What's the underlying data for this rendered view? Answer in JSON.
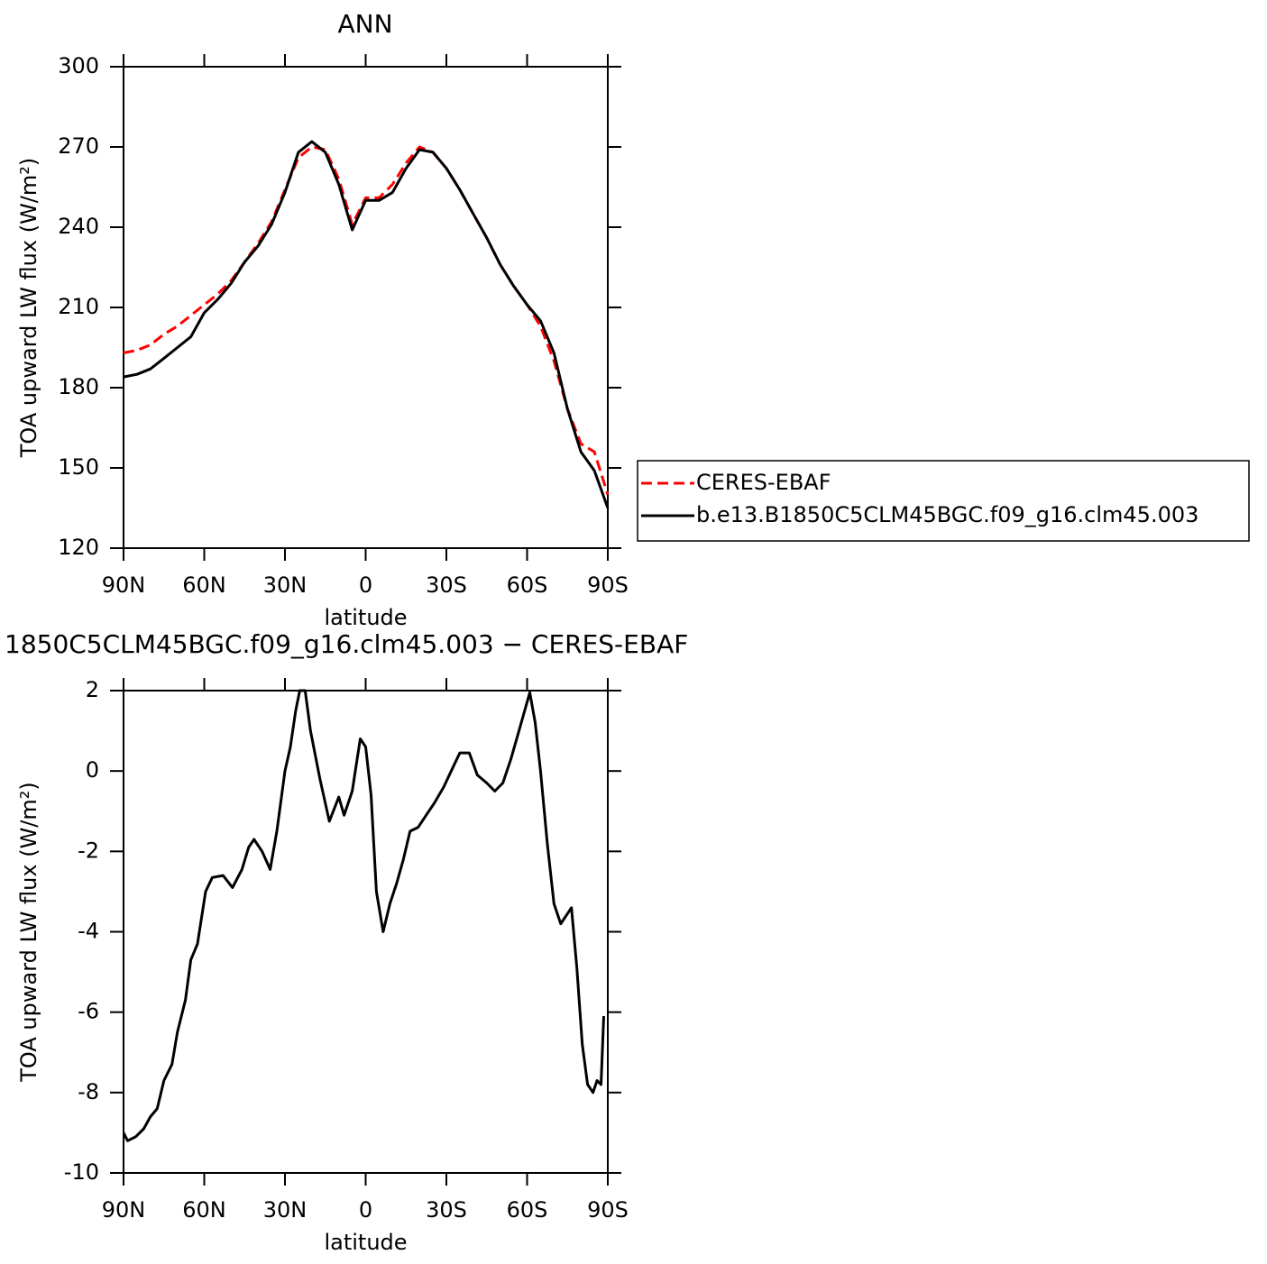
{
  "chart_data": [
    {
      "type": "line",
      "title": "ANN",
      "xlabel": "latitude",
      "ylabel": "TOA upward LW flux (W/m²)",
      "x": [
        90,
        85,
        80,
        75,
        70,
        65,
        60,
        55,
        50,
        45,
        40,
        35,
        30,
        25,
        20,
        15,
        10,
        5,
        0,
        -5,
        -10,
        -15,
        -20,
        -25,
        -30,
        -35,
        -40,
        -45,
        -50,
        -55,
        -60,
        -65,
        -70,
        -75,
        -80,
        -85,
        -90
      ],
      "series": [
        {
          "name": "CERES-EBAF",
          "color": "#ff0000",
          "dash": true,
          "values": [
            193,
            194,
            196,
            200,
            203,
            207,
            211,
            215,
            220,
            227,
            234,
            242,
            254,
            266,
            270,
            269,
            258,
            241,
            251,
            251,
            256,
            264,
            270,
            268,
            262,
            254,
            245,
            236,
            226,
            218,
            211,
            203,
            190,
            172,
            159,
            156,
            140
          ]
        },
        {
          "name": "b.e13.B1850C5CLM45BGC.f09_g16.clm45.003",
          "color": "#000000",
          "dash": false,
          "values": [
            184,
            185,
            187,
            191,
            195,
            199,
            208,
            213,
            219,
            227,
            233,
            241,
            253,
            268,
            272,
            268,
            256,
            239,
            250,
            250,
            253,
            262,
            269,
            268,
            262,
            254,
            245,
            236,
            226,
            218,
            211,
            205,
            193,
            172,
            156,
            149,
            135
          ]
        }
      ],
      "xlim": [
        90,
        -90
      ],
      "xticks": [
        {
          "value": 90,
          "label": "90N"
        },
        {
          "value": 60,
          "label": "60N"
        },
        {
          "value": 30,
          "label": "30N"
        },
        0,
        {
          "value": -30,
          "label": "30S"
        },
        {
          "value": -60,
          "label": "60S"
        },
        {
          "value": -90,
          "label": "90S"
        }
      ],
      "ylim": [
        120,
        300
      ],
      "yticks": [
        120,
        150,
        180,
        210,
        240,
        270,
        300
      ],
      "legend": "right"
    },
    {
      "type": "line",
      "title": "1850C5CLM45BGC.f09_g16.clm45.003 − CERES-EBAF",
      "xlabel": "latitude",
      "ylabel": "TOA upward LW flux (W/m²)",
      "x": [
        90,
        88.5,
        85.5,
        82.5,
        80,
        77.5,
        75,
        72,
        70,
        67,
        65,
        62.5,
        59.5,
        57,
        53,
        49.5,
        46,
        43.5,
        41.5,
        38.5,
        35.5,
        33,
        30,
        28,
        26,
        24.5,
        22.5,
        20.5,
        17,
        13.5,
        10,
        8,
        5,
        2,
        0,
        -2,
        -4,
        -6.5,
        -9,
        -11.5,
        -14,
        -16.5,
        -19.5,
        -22.5,
        -25.5,
        -29,
        -32.5,
        -35,
        -38.5,
        -41.5,
        -45,
        -48,
        -51,
        -54,
        -57,
        -61,
        -63,
        -65,
        -67.5,
        -70,
        -72.5,
        -74.5,
        -76.5,
        -78.5,
        -80.5,
        -82.5,
        -84.5,
        -86,
        -87.5,
        -88.5
      ],
      "series": [
        {
          "color": "#000000",
          "dash": false,
          "values": [
            -9.0,
            -9.2,
            -9.1,
            -8.9,
            -8.6,
            -8.4,
            -7.7,
            -7.3,
            -6.5,
            -5.7,
            -4.7,
            -4.3,
            -3.0,
            -2.65,
            -2.6,
            -2.9,
            -2.45,
            -1.9,
            -1.7,
            -2.0,
            -2.45,
            -1.5,
            0,
            0.6,
            1.5,
            2.0,
            2.0,
            1.0,
            -0.2,
            -1.25,
            -0.65,
            -1.1,
            -0.5,
            0.8,
            0.6,
            -0.6,
            -3.0,
            -4.0,
            -3.3,
            -2.8,
            -2.2,
            -1.5,
            -1.4,
            -1.1,
            -0.8,
            -0.4,
            0.1,
            0.45,
            0.45,
            -0.1,
            -0.3,
            -0.5,
            -0.3,
            0.3,
            1.0,
            1.95,
            1.2,
            0.0,
            -1.8,
            -3.3,
            -3.8,
            -3.6,
            -3.4,
            -4.9,
            -6.8,
            -7.8,
            -8.0,
            -7.7,
            -7.8,
            -6.1
          ]
        }
      ],
      "xlim": [
        90,
        -90
      ],
      "xticks": [
        {
          "value": 90,
          "label": "90N"
        },
        {
          "value": 60,
          "label": "60N"
        },
        {
          "value": 30,
          "label": "30N"
        },
        0,
        {
          "value": -30,
          "label": "30S"
        },
        {
          "value": -60,
          "label": "60S"
        },
        {
          "value": -90,
          "label": "90S"
        }
      ],
      "ylim": [
        -10,
        2
      ],
      "yticks": [
        -10,
        -8,
        -6,
        -4,
        -2,
        0,
        2
      ]
    }
  ]
}
